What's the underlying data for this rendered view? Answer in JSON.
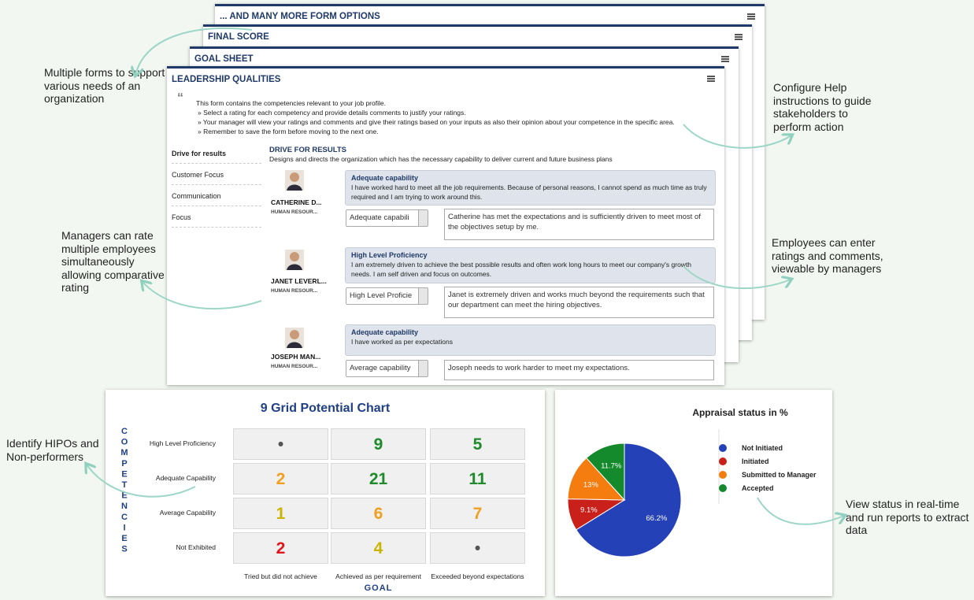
{
  "annotations": {
    "forms": "Multiple forms to support various needs of an organization",
    "help": "Configure Help instructions to guide stakeholders to perform action",
    "managers": "Managers can rate multiple employees simultaneously allowing comparative rating",
    "employees": "Employees can enter ratings and comments, viewable by managers",
    "hipo": "Identify HIPOs and Non-performers",
    "status": "View status in real-time and run reports to extract data"
  },
  "back_forms": [
    "... AND MANY MORE FORM OPTIONS",
    "FINAL SCORE",
    "GOAL SHEET"
  ],
  "form": {
    "title": "LEADERSHIP QUALITIES",
    "intro": [
      "This form contains the competencies relevant to your job profile.",
      "» Select a rating for each competency and provide details comments to justify your ratings.",
      "» Your manager will view your ratings and comments and give their ratings based on your inputs as also their opinion about your competence in the specific area.",
      "» Remember to save the form before moving to the next one."
    ],
    "nav": [
      "Drive for results",
      "Customer Focus",
      "Communication",
      "Focus"
    ],
    "section": {
      "title": "DRIVE FOR RESULTS",
      "description": "Designs and directs the organization which has the necessary capability to deliver current and future business plans"
    },
    "employees": [
      {
        "name": "CATHERINE D...",
        "dept": "HUMAN RESOUR...",
        "rating": "Adequate capability",
        "self_comment": "I have worked hard to meet all the job requirements. Because of personal reasons, I cannot spend as much time as truly required and I am trying to work around this.",
        "selection": "Adequate capabili",
        "manager_comment": "Catherine has met the expectations and is sufficiently driven to meet most of the objectives setup by me."
      },
      {
        "name": "JANET LEVERL...",
        "dept": "HUMAN RESOUR...",
        "rating": "High Level Proficiency",
        "self_comment": "I am extremely driven to achieve the best possible results and often work long hours to meet our company's growth needs. I am self driven and focus on outcomes.",
        "selection": "High Level Proficie",
        "manager_comment": "Janet is extremely driven and works much beyond the requirements such that our department can meet the hiring objectives."
      },
      {
        "name": "JOSEPH MAN...",
        "dept": "HUMAN RESOUR...",
        "rating": "Adequate capability",
        "self_comment": "I have worked as per expectations",
        "selection": "Average capability",
        "manager_comment": "Joseph needs to work harder to meet my expectations."
      }
    ]
  },
  "grid_chart": {
    "title": "9 Grid Potential Chart",
    "y_label": "COMPETENCIES",
    "x_label": "GOAL",
    "rows": [
      "High Level Proficiency",
      "Adequate Capability",
      "Average Capability",
      "Not Exhibited"
    ],
    "columns": [
      "Tried but did not achieve",
      "Achieved as per requirement",
      "Exceeded beyond expectations"
    ],
    "cells": [
      [
        "•",
        9,
        5
      ],
      [
        2,
        21,
        11
      ],
      [
        1,
        6,
        7
      ],
      [
        2,
        4,
        "•"
      ]
    ],
    "cell_colors": [
      [
        "#555",
        "#1e8a2a",
        "#1e8a2a"
      ],
      [
        "#f0a020",
        "#1e8a2a",
        "#1e8a2a"
      ],
      [
        "#c9b400",
        "#f0a020",
        "#f0a020"
      ],
      [
        "#e0161c",
        "#c9b400",
        "#555"
      ]
    ]
  },
  "chart_data": {
    "type": "pie",
    "title": "Appraisal status in %",
    "categories": [
      "Not Initiated",
      "Initiated",
      "Submitted to Manager",
      "Accepted"
    ],
    "values": [
      66.2,
      9.1,
      13,
      11.7
    ],
    "value_labels": [
      "66.2%",
      "9.1%",
      "13%",
      "11.7%"
    ],
    "colors": [
      "#2541b8",
      "#c9201a",
      "#f57c0f",
      "#158a2c"
    ]
  }
}
